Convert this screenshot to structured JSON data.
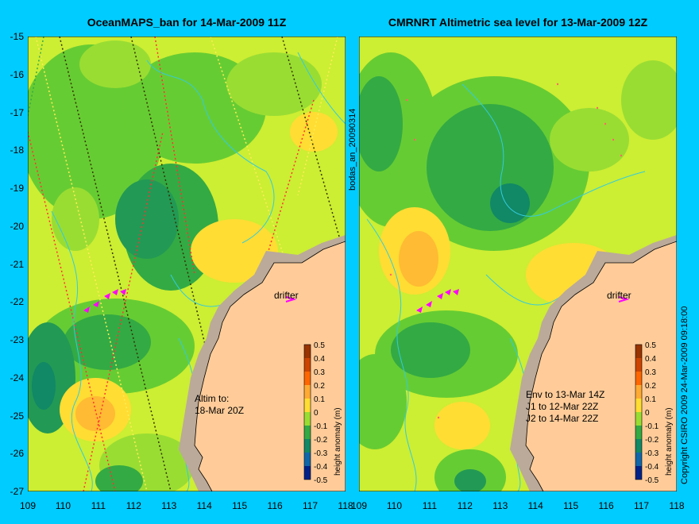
{
  "panels": {
    "left": {
      "title": "OceanMAPS_ban for 14-Mar-2009 11Z",
      "drifter_label": "drifter",
      "info_lines": [
        "Altim to:",
        "18-Mar 20Z"
      ],
      "side_label": "bodas_an_20090314"
    },
    "right": {
      "title": "CMRNRT Altimetric sea level  for 13-Mar-2009 12Z",
      "drifter_label": "drifter",
      "info_lines": [
        "Env to 13-Mar 14Z",
        "J1 to 12-Mar 22Z",
        "J2 to 14-Mar 22Z"
      ],
      "side_label": "Copyright CSIRO 2009   24-Mar-2009 09:18:00"
    }
  },
  "axes": {
    "y_ticks": [
      "-15",
      "-16",
      "-17",
      "-18",
      "-19",
      "-20",
      "-21",
      "-22",
      "-23",
      "-24",
      "-25",
      "-26",
      "-27"
    ],
    "x_ticks": [
      "109",
      "110",
      "111",
      "112",
      "113",
      "114",
      "115",
      "116",
      "117",
      "118"
    ],
    "x_range": [
      109,
      118
    ],
    "y_range": [
      -27,
      -15
    ]
  },
  "colorbar": {
    "label": "height anomaly (m)",
    "ticks": [
      "0.5",
      "0.4",
      "0.3",
      "0.2",
      "0.1",
      "0",
      "-0.1",
      "-0.2",
      "-0.3",
      "-0.4",
      "-0.5"
    ]
  },
  "colors": {
    "background": "#00ccff",
    "land": "#ffcc99",
    "shelf": "#bbaa99",
    "contour": "#33ccdd",
    "drifter": "#ff00ff"
  }
}
